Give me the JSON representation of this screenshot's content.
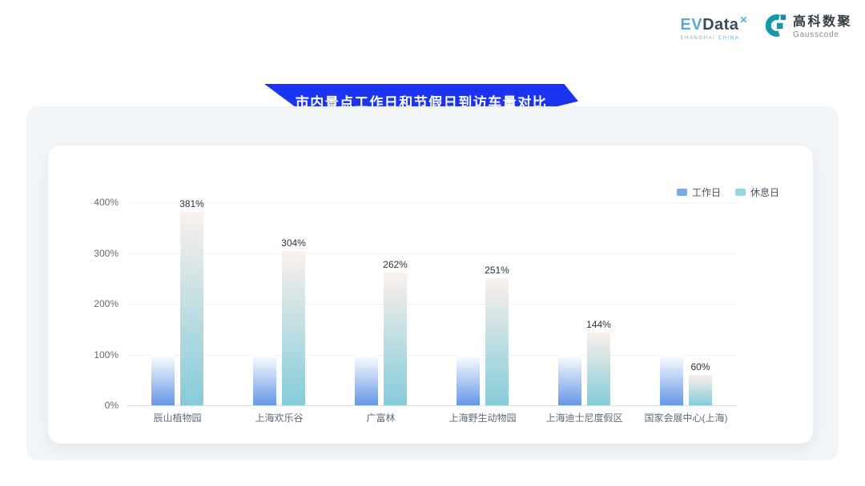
{
  "header": {
    "evdata_logo": {
      "ev": "EV",
      "data": "Data",
      "x_mark": "✕",
      "caption_shanghai": "SHANGHAI",
      "caption_china": "CHINA"
    },
    "gausscode_logo": {
      "name_cn": "高科数聚",
      "name_en": "Gausscode",
      "mark_color": "#1798a9",
      "mark_square_color": "#2b81ab"
    }
  },
  "title_banner": {
    "text": "市内景点工作日和节假日到访车量对比",
    "bg_color": "#1a34f2"
  },
  "chart_data": {
    "type": "bar",
    "title": "市内景点工作日和节假日到访车量对比",
    "categories": [
      "辰山植物园",
      "上海欢乐谷",
      "广富林",
      "上海野生动物园",
      "上海迪士尼度假区",
      "国家会展中心(上海)"
    ],
    "series": [
      {
        "name": "工作日",
        "values": [
          100,
          100,
          100,
          100,
          100,
          100
        ],
        "gradient_top": "#fdfeff",
        "gradient_bottom": "#6697e7",
        "legend_color": "#7aaae8"
      },
      {
        "name": "休息日",
        "values": [
          381,
          304,
          262,
          251,
          144,
          60
        ],
        "gradient_top": "#fbf0ec",
        "gradient_bottom": "#84ccd8",
        "legend_color": "#93d5e1"
      }
    ],
    "bar_value_labels": [
      "381%",
      "304%",
      "262%",
      "251%",
      "144%",
      "60%"
    ],
    "ytick_labels": [
      "0%",
      "100%",
      "200%",
      "300%",
      "400%"
    ],
    "ylim": [
      0,
      400
    ],
    "grid": true,
    "legend_position": "top-right",
    "value_labels_on_series": "休息日"
  }
}
